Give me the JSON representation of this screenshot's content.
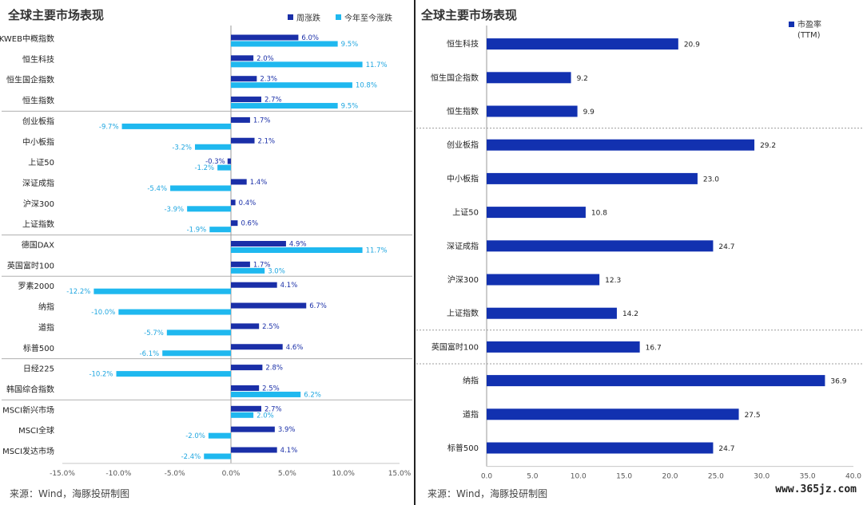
{
  "watermark": "www.365jz.com",
  "colors": {
    "weekly": "#1a2fa8",
    "ytd": "#1fb8ef",
    "pe": "#1231b0",
    "labelDark": "#1a2fa8",
    "labelLight": "#1fa6e0"
  },
  "chart_data": [
    {
      "type": "bar",
      "orientation": "horizontal",
      "title": "全球主要市场表现",
      "source": "来源：Wind，海豚投研制图",
      "categories": [
        "KWEB中概指数",
        "恒生科技",
        "恒生国企指数",
        "恒生指数",
        "创业板指",
        "中小板指",
        "上证50",
        "深证成指",
        "沪深300",
        "上证指数",
        "德国DAX",
        "英国富时100",
        "罗素2000",
        "纳指",
        "道指",
        "标普500",
        "日经225",
        "韩国综合指数",
        "MSCI新兴市场",
        "MSCI全球",
        "MSCI发达市场"
      ],
      "series": [
        {
          "name": "周涨跌",
          "values": [
            6.0,
            2.0,
            2.3,
            2.7,
            1.7,
            2.1,
            -0.3,
            1.4,
            0.4,
            0.6,
            4.9,
            1.7,
            4.1,
            6.7,
            2.5,
            4.6,
            2.8,
            2.5,
            2.7,
            3.9,
            4.1
          ],
          "labels": [
            "6.0%",
            "2.0%",
            "2.3%",
            "2.7%",
            "1.7%",
            "2.1%",
            "-0.3%",
            "1.4%",
            "0.4%",
            "0.6%",
            "4.9%",
            "1.7%",
            "4.1%",
            "6.7%",
            "2.5%",
            "4.6%",
            "2.8%",
            "2.5%",
            "2.7%",
            "3.9%",
            "4.1%"
          ]
        },
        {
          "name": "今年至今涨跌",
          "values": [
            9.5,
            11.7,
            10.8,
            9.5,
            -9.7,
            -3.2,
            -1.2,
            -5.4,
            -3.9,
            -1.9,
            11.7,
            3.0,
            -12.2,
            -10.0,
            -5.7,
            -6.1,
            -10.2,
            6.2,
            2.0,
            -2.0,
            -2.4
          ],
          "labels": [
            "9.5%",
            "11.7%",
            "10.8%",
            "9.5%",
            "-9.7%",
            "-3.2%",
            "-1.2%",
            "-5.4%",
            "-3.9%",
            "-1.9%",
            "11.7%",
            "3.0%",
            "-12.2%",
            "-10.0%",
            "-5.7%",
            "-6.1%",
            "-10.2%",
            "6.2%",
            "2.0%",
            "-2.0%",
            "-2.4%"
          ]
        }
      ],
      "group_breaks_after": [
        3,
        9,
        11,
        15,
        17
      ],
      "xlim": [
        -15,
        15
      ],
      "xticks": [
        -15,
        -10,
        -5,
        0,
        5,
        10,
        15
      ],
      "xtick_labels": [
        "-15.0%",
        "-10.0%",
        "-5.0%",
        "0.0%",
        "5.0%",
        "10.0%",
        "15.0%"
      ],
      "legend": "top-right"
    },
    {
      "type": "bar",
      "orientation": "horizontal",
      "title": "全球主要市场表现",
      "source": "来源：Wind，海豚投研制图",
      "categories": [
        "恒生科技",
        "恒生国企指数",
        "恒生指数",
        "创业板指",
        "中小板指",
        "上证50",
        "深证成指",
        "沪深300",
        "上证指数",
        "英国富时100",
        "纳指",
        "道指",
        "标普500"
      ],
      "series": [
        {
          "name": "市盈率",
          "name_line2": "(TTM)",
          "values": [
            20.9,
            9.2,
            9.9,
            29.2,
            23.0,
            10.8,
            24.7,
            12.3,
            14.2,
            16.7,
            36.9,
            27.5,
            24.7
          ],
          "labels": [
            "20.9",
            "9.2",
            "9.9",
            "29.2",
            "23.0",
            "10.8",
            "24.7",
            "12.3",
            "14.2",
            "16.7",
            "36.9",
            "27.5",
            "24.7"
          ]
        }
      ],
      "group_breaks_after": [
        2,
        8,
        9
      ],
      "xlim": [
        0,
        40
      ],
      "xticks": [
        0,
        5,
        10,
        15,
        20,
        25,
        30,
        35,
        40
      ],
      "xtick_labels": [
        "0.0",
        "5.0",
        "10.0",
        "15.0",
        "20.0",
        "25.0",
        "30.0",
        "35.0",
        "40.0"
      ],
      "legend": "top-right"
    }
  ]
}
